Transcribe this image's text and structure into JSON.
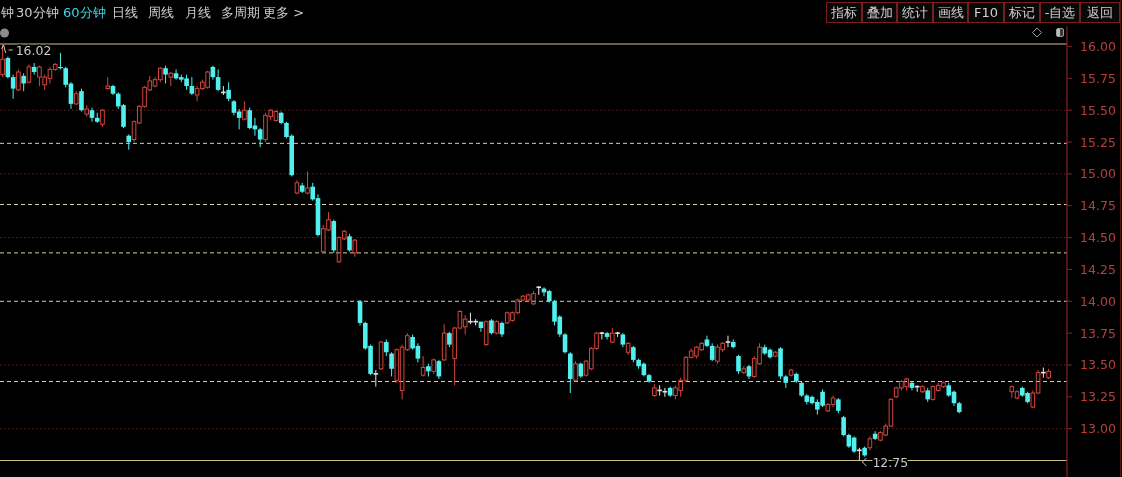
{
  "chart_data": {
    "type": "candlestick",
    "categories": [
      null,
      null,
      null,
      null,
      null,
      null,
      null,
      null,
      null,
      null,
      null,
      null,
      null,
      null,
      null,
      null,
      null,
      null,
      null,
      null,
      null,
      null,
      null,
      null,
      null,
      null,
      null,
      null,
      null,
      null,
      null,
      null,
      null,
      null,
      null,
      null,
      null,
      null,
      null,
      null,
      null,
      null,
      null,
      null,
      null,
      null,
      null,
      null,
      null,
      null,
      null,
      null,
      null,
      null,
      null,
      null,
      null,
      null,
      null,
      null,
      null,
      null,
      null,
      null,
      null,
      null,
      null,
      null,
      null,
      null,
      null,
      null,
      null,
      null,
      null,
      null,
      null,
      null,
      null,
      null,
      null,
      null,
      null,
      null,
      null,
      null,
      null,
      null,
      null,
      null,
      null,
      null,
      null,
      null,
      null,
      null,
      null,
      null,
      null,
      null,
      null,
      null,
      null,
      null,
      null,
      null,
      null,
      null,
      null,
      null,
      null,
      null,
      null,
      null,
      null,
      null,
      null,
      null,
      null,
      null,
      null,
      null,
      null,
      null,
      null,
      null,
      null,
      null,
      null,
      null,
      null,
      null,
      null,
      null,
      null,
      null,
      null,
      null,
      null,
      null,
      null,
      null,
      null,
      null,
      null,
      null,
      null,
      null,
      null,
      null,
      null,
      null,
      null,
      null,
      null,
      null,
      null,
      null,
      null,
      null,
      null,
      null,
      null,
      null,
      null,
      null,
      null,
      null,
      null,
      null,
      null,
      null,
      null,
      null,
      null,
      null,
      null,
      null,
      null,
      null,
      null,
      null,
      null,
      null,
      null,
      null,
      null,
      null,
      null,
      null,
      null,
      null,
      null,
      null,
      null,
      null,
      null,
      null,
      null,
      null,
      null,
      null,
      null
    ],
    "ohlc": [
      [
        15.78,
        16.02,
        15.76,
        15.9
      ],
      [
        15.91,
        15.92,
        15.75,
        15.76
      ],
      [
        15.76,
        15.78,
        15.59,
        15.67
      ],
      [
        15.66,
        15.82,
        15.65,
        15.8
      ],
      [
        15.77,
        15.79,
        15.65,
        15.71
      ],
      [
        15.72,
        15.86,
        15.71,
        15.84
      ],
      [
        15.84,
        15.87,
        15.78,
        15.8
      ],
      [
        15.76,
        15.85,
        15.69,
        15.84
      ],
      [
        15.7,
        15.78,
        15.66,
        15.76
      ],
      [
        15.75,
        15.84,
        15.71,
        15.82
      ],
      [
        15.82,
        15.87,
        15.81,
        15.86
      ],
      [
        15.84,
        15.95,
        15.82,
        15.83
      ],
      [
        15.83,
        15.84,
        15.68,
        15.7
      ],
      [
        15.71,
        15.72,
        15.51,
        15.55
      ],
      [
        15.55,
        15.65,
        15.54,
        15.63
      ],
      [
        15.65,
        15.67,
        15.49,
        15.5
      ],
      [
        15.47,
        15.54,
        15.45,
        15.51
      ],
      [
        15.5,
        15.52,
        15.41,
        15.44
      ],
      [
        15.44,
        15.48,
        15.4,
        15.41
      ],
      [
        15.39,
        15.51,
        15.37,
        15.5
      ],
      [
        15.67,
        15.76,
        15.66,
        15.69
      ],
      [
        15.69,
        15.7,
        15.62,
        15.63
      ],
      [
        15.63,
        15.64,
        15.51,
        15.53
      ],
      [
        15.54,
        15.55,
        15.36,
        15.37
      ],
      [
        15.3,
        15.31,
        15.19,
        15.25
      ],
      [
        15.27,
        15.42,
        15.25,
        15.41
      ],
      [
        15.4,
        15.54,
        15.39,
        15.53
      ],
      [
        15.53,
        15.69,
        15.52,
        15.68
      ],
      [
        15.66,
        15.77,
        15.65,
        15.73
      ],
      [
        15.69,
        15.76,
        15.68,
        15.74
      ],
      [
        15.74,
        15.84,
        15.72,
        15.83
      ],
      [
        15.83,
        15.85,
        15.71,
        15.78
      ],
      [
        15.76,
        15.8,
        15.69,
        15.79
      ],
      [
        15.79,
        15.82,
        15.74,
        15.75
      ],
      [
        15.76,
        15.78,
        15.72,
        15.74
      ],
      [
        15.75,
        15.78,
        15.66,
        15.69
      ],
      [
        15.69,
        15.76,
        15.62,
        15.63
      ],
      [
        15.62,
        15.69,
        15.57,
        15.67
      ],
      [
        15.67,
        15.74,
        15.66,
        15.72
      ],
      [
        15.68,
        15.81,
        15.67,
        15.8
      ],
      [
        15.84,
        15.85,
        15.74,
        15.76
      ],
      [
        15.76,
        15.82,
        15.65,
        15.66
      ],
      [
        15.64,
        15.69,
        15.62,
        15.64
      ],
      [
        15.66,
        15.72,
        15.57,
        15.59
      ],
      [
        15.57,
        15.58,
        15.46,
        15.48
      ],
      [
        15.49,
        15.51,
        15.35,
        15.44
      ],
      [
        15.43,
        15.57,
        15.42,
        15.5
      ],
      [
        15.5,
        15.52,
        15.35,
        15.36
      ],
      [
        15.38,
        15.44,
        15.3,
        15.35
      ],
      [
        15.35,
        15.36,
        15.21,
        15.27
      ],
      [
        15.27,
        15.48,
        15.25,
        15.46
      ],
      [
        15.45,
        15.51,
        15.42,
        15.5
      ],
      [
        15.42,
        15.5,
        15.41,
        15.49
      ],
      [
        15.48,
        15.49,
        15.39,
        15.4
      ],
      [
        15.4,
        15.41,
        15.28,
        15.29
      ],
      [
        15.3,
        15.31,
        14.98,
        14.99
      ],
      [
        14.85,
        14.95,
        14.84,
        14.93
      ],
      [
        14.91,
        14.93,
        14.85,
        14.86
      ],
      [
        14.85,
        15.02,
        14.84,
        14.89
      ],
      [
        14.9,
        14.93,
        14.79,
        14.8
      ],
      [
        14.81,
        14.84,
        14.51,
        14.52
      ],
      [
        14.39,
        14.6,
        14.38,
        14.57
      ],
      [
        14.56,
        14.7,
        14.55,
        14.64
      ],
      [
        14.63,
        14.64,
        14.38,
        14.4
      ],
      [
        14.31,
        14.51,
        14.3,
        14.5
      ],
      [
        14.49,
        14.56,
        14.48,
        14.55
      ],
      [
        14.51,
        14.53,
        14.39,
        14.4
      ],
      [
        14.38,
        14.49,
        14.35,
        14.48
      ],
      [
        14.0,
        14.01,
        13.81,
        13.83
      ],
      [
        13.83,
        13.84,
        13.62,
        13.63
      ],
      [
        13.65,
        13.66,
        13.42,
        13.43
      ],
      [
        13.43,
        13.46,
        13.33,
        13.43
      ],
      [
        13.47,
        13.69,
        13.46,
        13.68
      ],
      [
        13.68,
        13.7,
        13.57,
        13.6
      ],
      [
        13.59,
        13.6,
        13.41,
        13.47
      ],
      [
        13.38,
        13.63,
        13.36,
        13.62
      ],
      [
        13.3,
        13.66,
        13.23,
        13.64
      ],
      [
        13.62,
        13.75,
        13.61,
        13.73
      ],
      [
        13.72,
        13.74,
        13.62,
        13.63
      ],
      [
        13.65,
        13.67,
        13.52,
        13.55
      ],
      [
        13.42,
        13.57,
        13.41,
        13.48
      ],
      [
        13.49,
        13.51,
        13.41,
        13.45
      ],
      [
        13.45,
        13.55,
        13.43,
        13.54
      ],
      [
        13.53,
        13.54,
        13.39,
        13.41
      ],
      [
        13.54,
        13.82,
        13.53,
        13.75
      ],
      [
        13.75,
        13.76,
        13.64,
        13.66
      ],
      [
        13.55,
        13.8,
        13.34,
        13.79
      ],
      [
        13.79,
        13.93,
        13.78,
        13.92
      ],
      [
        13.8,
        13.89,
        13.74,
        13.86
      ],
      [
        13.84,
        13.91,
        13.82,
        13.84
      ],
      [
        13.84,
        13.86,
        13.81,
        13.84
      ],
      [
        13.84,
        13.84,
        13.76,
        13.79
      ],
      [
        13.66,
        13.85,
        13.65,
        13.84
      ],
      [
        13.85,
        13.86,
        13.74,
        13.75
      ],
      [
        13.75,
        13.85,
        13.74,
        13.84
      ],
      [
        13.83,
        13.84,
        13.72,
        13.74
      ],
      [
        13.83,
        13.92,
        13.82,
        13.91
      ],
      [
        13.85,
        13.92,
        13.84,
        13.91
      ],
      [
        13.91,
        14.02,
        13.9,
        14.01
      ],
      [
        14.01,
        14.05,
        14.0,
        14.04
      ],
      [
        14.01,
        14.06,
        13.99,
        14.05
      ],
      [
        13.98,
        14.08,
        13.97,
        14.06
      ],
      [
        14.11,
        14.12,
        14.05,
        14.11
      ],
      [
        14.1,
        14.11,
        14.04,
        14.07
      ],
      [
        14.08,
        14.09,
        13.99,
        14.0
      ],
      [
        14.0,
        14.01,
        13.81,
        13.84
      ],
      [
        13.88,
        13.89,
        13.72,
        13.74
      ],
      [
        13.74,
        13.75,
        13.59,
        13.6
      ],
      [
        13.59,
        13.6,
        13.28,
        13.39
      ],
      [
        13.38,
        13.53,
        13.37,
        13.51
      ],
      [
        13.51,
        13.52,
        13.4,
        13.41
      ],
      [
        13.42,
        13.54,
        13.41,
        13.53
      ],
      [
        13.47,
        13.64,
        13.46,
        13.63
      ],
      [
        13.63,
        13.76,
        13.62,
        13.75
      ],
      [
        13.75,
        13.76,
        13.7,
        13.75
      ],
      [
        13.75,
        13.76,
        13.7,
        13.72
      ],
      [
        13.68,
        13.79,
        13.67,
        13.75
      ],
      [
        13.75,
        13.76,
        13.72,
        13.75
      ],
      [
        13.74,
        13.75,
        13.64,
        13.66
      ],
      [
        13.6,
        13.68,
        13.58,
        13.67
      ],
      [
        13.64,
        13.65,
        13.52,
        13.54
      ],
      [
        13.54,
        13.55,
        13.47,
        13.49
      ],
      [
        13.51,
        13.52,
        13.41,
        13.42
      ],
      [
        13.42,
        13.43,
        13.36,
        13.37
      ],
      [
        13.26,
        13.35,
        13.25,
        13.32
      ],
      [
        13.3,
        13.34,
        13.26,
        13.3
      ],
      [
        13.29,
        13.32,
        13.25,
        13.29
      ],
      [
        13.32,
        13.33,
        13.25,
        13.26
      ],
      [
        13.26,
        13.34,
        13.23,
        13.32
      ],
      [
        13.3,
        13.4,
        13.25,
        13.38
      ],
      [
        13.38,
        13.57,
        13.37,
        13.56
      ],
      [
        13.56,
        13.63,
        13.55,
        13.61
      ],
      [
        13.57,
        13.65,
        13.55,
        13.64
      ],
      [
        13.62,
        13.68,
        13.61,
        13.67
      ],
      [
        13.7,
        13.73,
        13.64,
        13.65
      ],
      [
        13.65,
        13.67,
        13.53,
        13.54
      ],
      [
        13.53,
        13.66,
        13.51,
        13.64
      ],
      [
        13.62,
        13.68,
        13.6,
        13.67
      ],
      [
        13.68,
        13.73,
        13.64,
        13.68
      ],
      [
        13.68,
        13.7,
        13.63,
        13.64
      ],
      [
        13.57,
        13.58,
        13.43,
        13.45
      ],
      [
        13.44,
        13.49,
        13.43,
        13.47
      ],
      [
        13.49,
        13.5,
        13.39,
        13.41
      ],
      [
        13.41,
        13.57,
        13.4,
        13.55
      ],
      [
        13.51,
        13.67,
        13.5,
        13.64
      ],
      [
        13.64,
        13.66,
        13.58,
        13.59
      ],
      [
        13.62,
        13.63,
        13.55,
        13.56
      ],
      [
        13.57,
        13.61,
        13.56,
        13.6
      ],
      [
        13.63,
        13.64,
        13.39,
        13.41
      ],
      [
        13.41,
        13.42,
        13.32,
        13.36
      ],
      [
        13.42,
        13.47,
        13.41,
        13.46
      ],
      [
        13.43,
        13.44,
        13.36,
        13.37
      ],
      [
        13.36,
        13.37,
        13.25,
        13.26
      ],
      [
        13.26,
        13.27,
        13.19,
        13.21
      ],
      [
        13.25,
        13.26,
        13.19,
        13.2
      ],
      [
        13.21,
        13.23,
        13.11,
        13.15
      ],
      [
        13.29,
        13.31,
        13.17,
        13.18
      ],
      [
        13.14,
        13.2,
        13.13,
        13.19
      ],
      [
        13.19,
        13.26,
        13.17,
        13.24
      ],
      [
        13.23,
        13.24,
        13.12,
        13.14
      ],
      [
        13.09,
        13.1,
        12.94,
        12.95
      ],
      [
        12.95,
        12.96,
        12.85,
        12.86
      ],
      [
        12.93,
        12.94,
        12.81,
        12.82
      ],
      [
        12.83,
        12.85,
        12.75,
        12.83
      ],
      [
        12.85,
        12.86,
        12.78,
        12.79
      ],
      [
        12.85,
        12.94,
        12.83,
        12.92
      ],
      [
        12.96,
        12.98,
        12.91,
        12.92
      ],
      [
        12.91,
        12.98,
        12.9,
        12.97
      ],
      [
        12.95,
        13.04,
        12.94,
        13.02
      ],
      [
        13.02,
        13.24,
        13.01,
        13.23
      ],
      [
        13.25,
        13.33,
        13.24,
        13.32
      ],
      [
        13.32,
        13.38,
        13.3,
        13.37
      ],
      [
        13.33,
        13.4,
        13.3,
        13.39
      ],
      [
        13.36,
        13.37,
        13.3,
        13.32
      ],
      [
        13.33,
        13.34,
        13.29,
        13.33
      ],
      [
        13.29,
        13.34,
        13.28,
        13.33
      ],
      [
        13.3,
        13.32,
        13.21,
        13.23
      ],
      [
        13.23,
        13.34,
        13.22,
        13.33
      ],
      [
        13.3,
        13.36,
        13.29,
        13.34
      ],
      [
        13.33,
        13.37,
        13.32,
        13.36
      ],
      [
        13.34,
        13.36,
        13.25,
        13.26
      ],
      [
        13.29,
        13.3,
        13.18,
        13.2
      ],
      [
        13.2,
        13.21,
        13.12,
        13.13
      ],
      null,
      null,
      null,
      null,
      null,
      null,
      null,
      null,
      null,
      [
        13.29,
        13.34,
        13.24,
        13.33
      ],
      [
        13.24,
        13.3,
        13.23,
        13.29
      ],
      [
        13.32,
        13.33,
        13.25,
        13.26
      ],
      [
        13.28,
        13.29,
        13.2,
        13.21
      ],
      [
        13.17,
        13.3,
        13.16,
        13.28
      ],
      [
        13.28,
        13.46,
        13.27,
        13.44
      ],
      [
        13.44,
        13.48,
        13.4,
        13.44
      ],
      [
        13.4,
        13.47,
        13.39,
        13.45
      ],
      null,
      null,
      null
    ],
    "ylim": [
      12.75,
      16.02
    ],
    "yticks": [
      {
        "value": 13,
        "label": "13.00"
      },
      13.25,
      {
        "value": 13.5,
        "label": "13.50"
      },
      13.75,
      {
        "value": 14,
        "label": "14.00"
      },
      14.25,
      {
        "value": 14.5,
        "label": "14.50"
      },
      14.75,
      {
        "value": 15,
        "label": "15.00"
      },
      15.25,
      {
        "value": 15.5,
        "label": "15.50"
      },
      15.75,
      {
        "value": 16,
        "label": "16.00"
      }
    ],
    "tick_labels": "y",
    "ref_lines": [
      {
        "axis": "y",
        "value": 15.5,
        "color": "#5c2a22",
        "line_style": "dotted"
      },
      {
        "axis": "y",
        "value": 15.0,
        "color": "#5c2a22",
        "line_style": "dotted"
      },
      {
        "axis": "y",
        "value": 14.5,
        "color": "#5c2a22",
        "line_style": "dotted"
      },
      {
        "axis": "y",
        "value": 13.5,
        "color": "#5c2a22",
        "line_style": "dotted"
      },
      {
        "axis": "y",
        "value": 13.0,
        "color": "#5c2a22",
        "line_style": "dotted"
      },
      {
        "axis": "y",
        "value": 15.24,
        "color": "#d8cfa6",
        "line_style": "dashed"
      },
      {
        "axis": "y",
        "value": 14.76,
        "color": "#d8cfa6",
        "line_style": "dashed"
      },
      {
        "axis": "y",
        "value": 14.38,
        "color": "#d8cfa6",
        "line_style": "dashed"
      },
      {
        "axis": "y",
        "value": 14.0,
        "color": "#d8cfa6",
        "line_style": "dashed"
      },
      {
        "axis": "y",
        "value": 13.37,
        "color": "#d8cfa6",
        "line_style": "dashed"
      }
    ],
    "annotations": [
      "16.02",
      "12.75",
      "钟",
      "30分钟",
      "60分钟",
      "日线",
      "周线",
      "月线",
      "多周期",
      "更多 >",
      "指标",
      "叠加",
      "统计",
      "画线",
      "F10",
      "标记",
      "-自选",
      "返回"
    ]
  }
}
